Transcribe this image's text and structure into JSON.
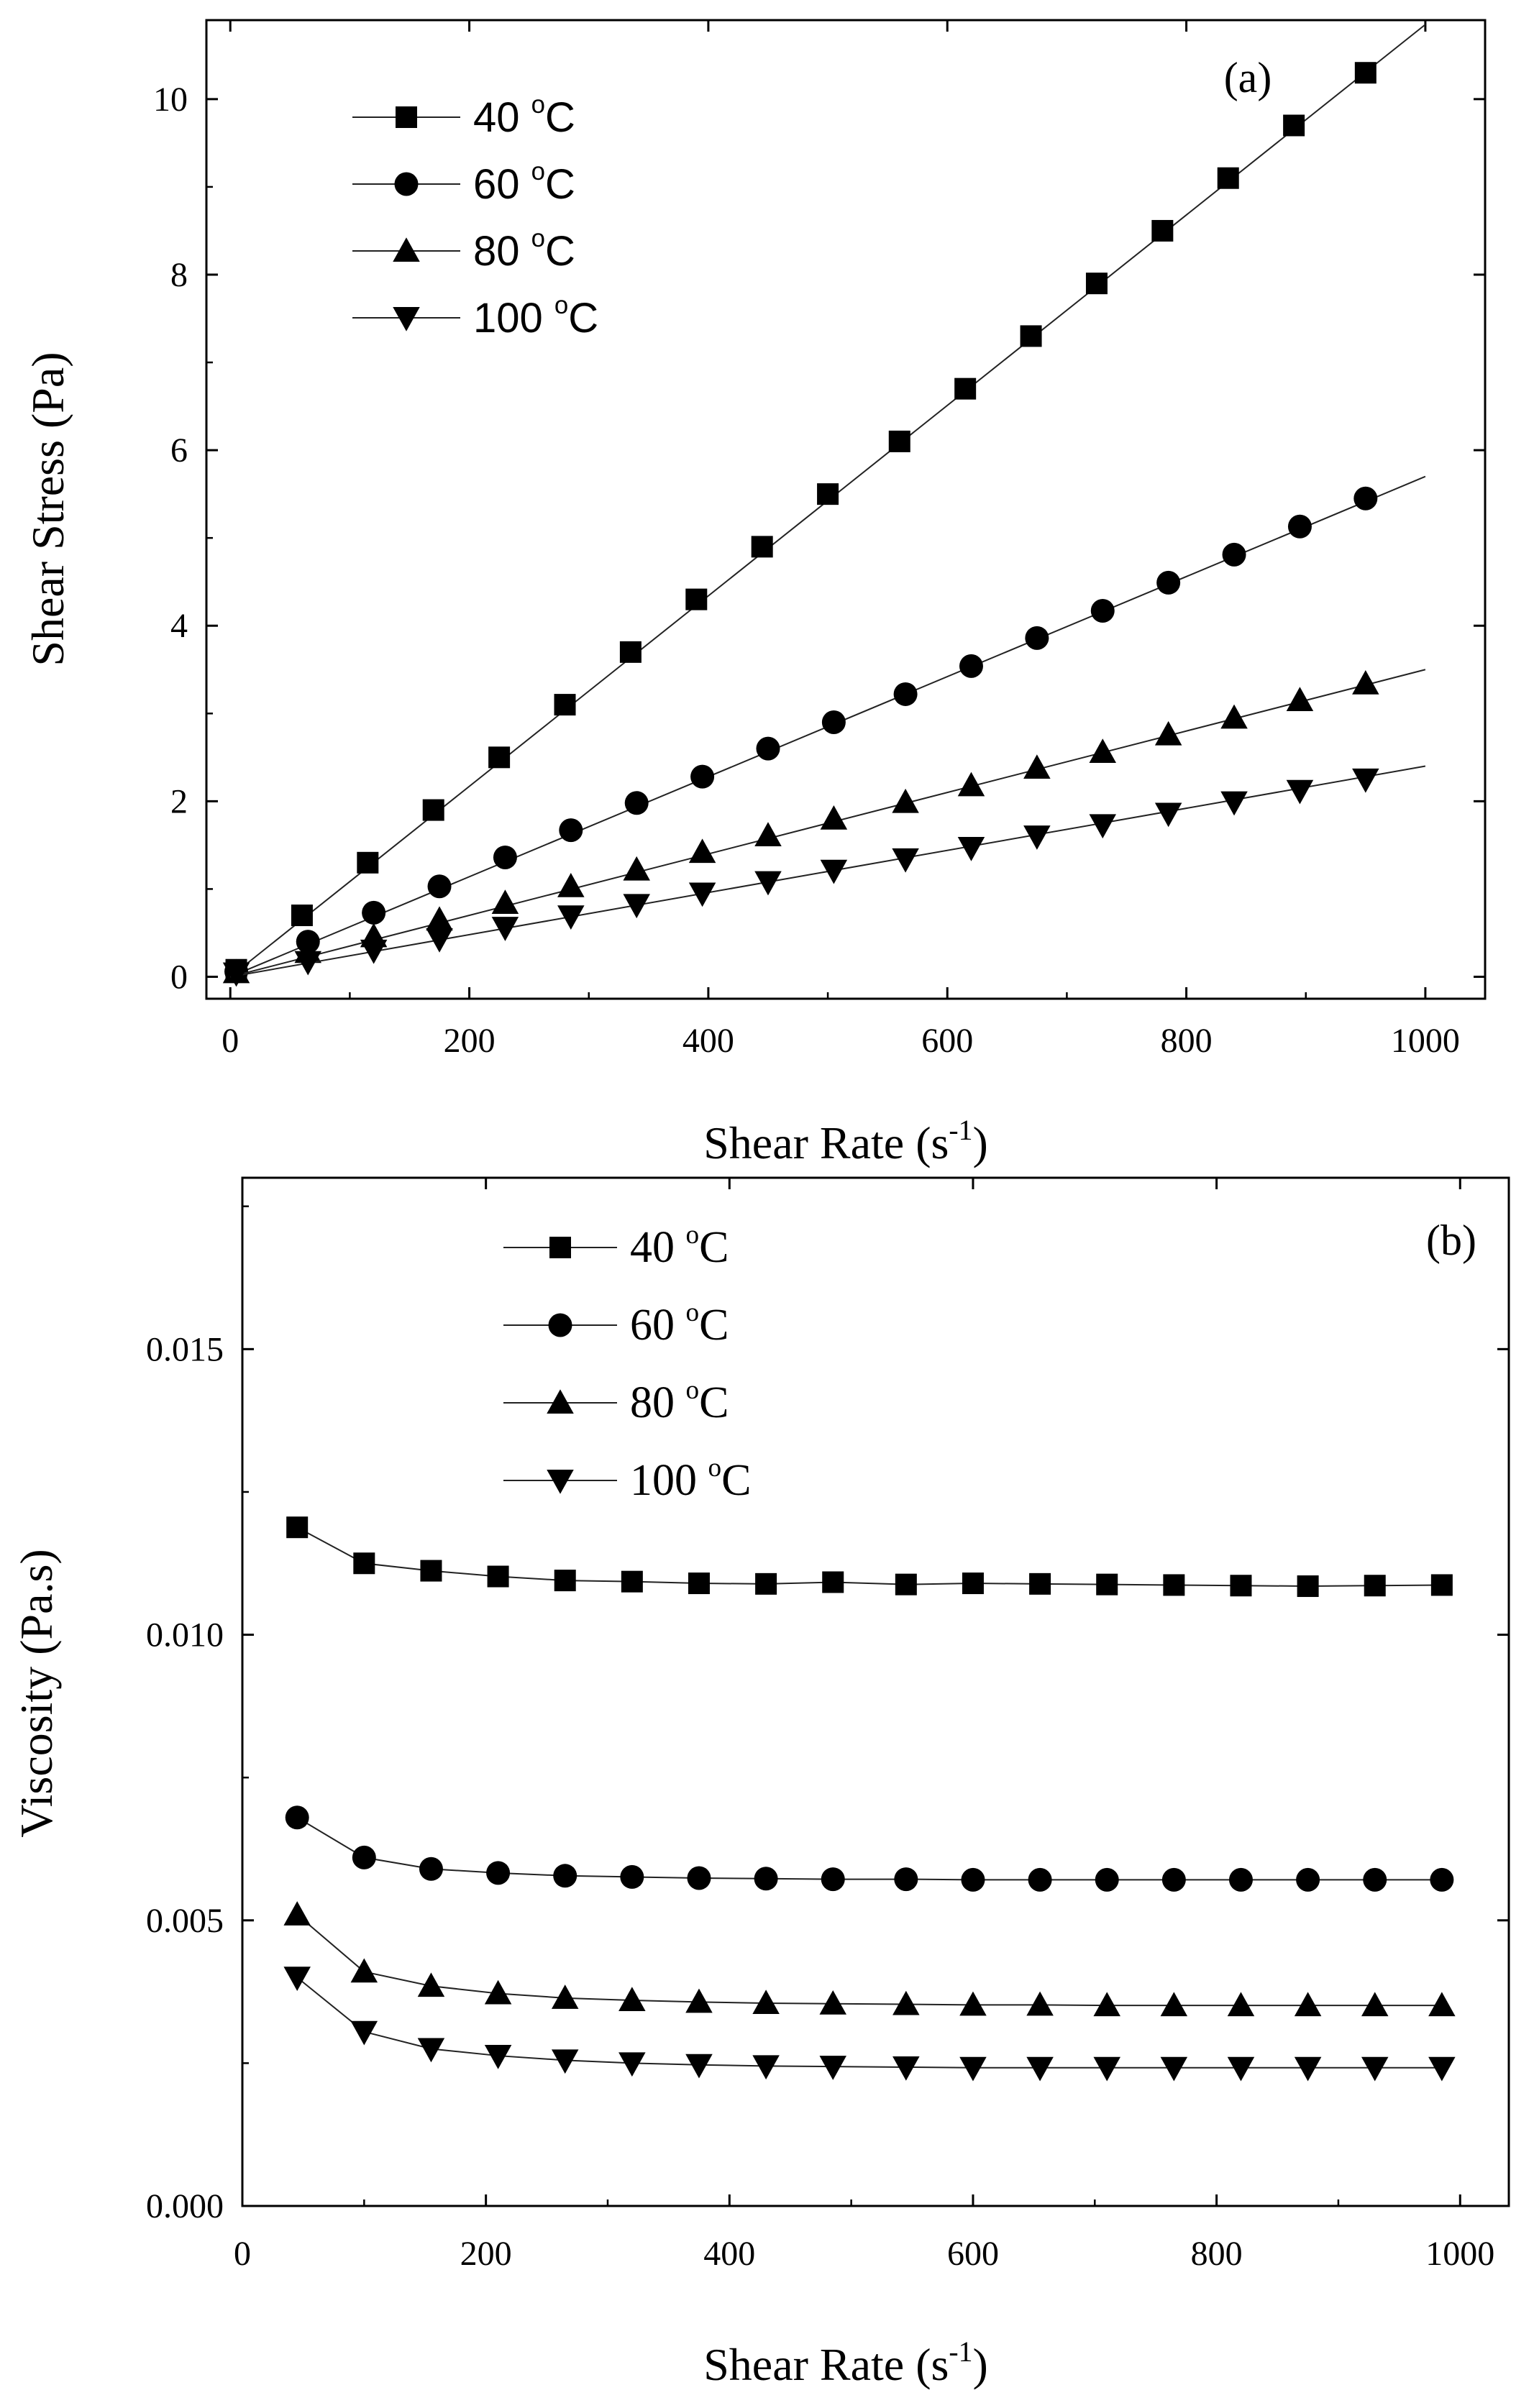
{
  "chart_data": [
    {
      "type": "line",
      "panel": "a",
      "panel_label": "(a)",
      "title": "",
      "xlabel_main": "Shear Rate (s",
      "xlabel_sup": "-1",
      "xlabel_close": ")",
      "ylabel": "Shear Stress (Pa)",
      "xlim": [
        -20,
        1050
      ],
      "ylim": [
        -0.25,
        10.9
      ],
      "xticks": [
        0,
        200,
        400,
        600,
        800,
        1000
      ],
      "xtick_labels": [
        "0",
        "200",
        "400",
        "600",
        "800",
        "1000"
      ],
      "yticks": [
        0,
        2,
        4,
        6,
        8,
        10
      ],
      "ytick_labels": [
        "0",
        "2",
        "4",
        "6",
        "8",
        "10"
      ],
      "legend_position": "top-left",
      "series": [
        {
          "name": "40 °C",
          "label_main": "40 ",
          "label_sup": "o",
          "label_unit": "C",
          "marker": "square",
          "x": [
            5,
            60,
            115,
            170,
            225,
            280,
            335,
            390,
            445,
            500,
            560,
            615,
            670,
            725,
            780,
            835,
            890,
            950
          ],
          "y": [
            0.08,
            0.7,
            1.3,
            1.9,
            2.5,
            3.1,
            3.7,
            4.3,
            4.9,
            5.5,
            6.1,
            6.7,
            7.3,
            7.9,
            8.5,
            9.1,
            9.7,
            10.3
          ],
          "line_x": [
            0,
            1000
          ],
          "line_y": [
            0.0,
            10.85
          ]
        },
        {
          "name": "60 °C",
          "label_main": "60 ",
          "label_sup": "o",
          "label_unit": "C",
          "marker": "circle",
          "x": [
            5,
            65,
            120,
            175,
            230,
            285,
            340,
            395,
            450,
            505,
            565,
            620,
            675,
            730,
            785,
            840,
            895,
            950
          ],
          "y": [
            0.06,
            0.4,
            0.73,
            1.03,
            1.36,
            1.67,
            1.98,
            2.28,
            2.6,
            2.9,
            3.22,
            3.54,
            3.86,
            4.17,
            4.49,
            4.81,
            5.13,
            5.45
          ],
          "line_x": [
            0,
            1000
          ],
          "line_y": [
            0.0,
            5.7
          ]
        },
        {
          "name": "80 °C",
          "label_main": "80 ",
          "label_sup": "o",
          "label_unit": "C",
          "marker": "triangle-up",
          "x": [
            5,
            65,
            120,
            175,
            230,
            285,
            340,
            395,
            450,
            505,
            565,
            620,
            675,
            730,
            785,
            840,
            895,
            950
          ],
          "y": [
            0.05,
            0.28,
            0.46,
            0.65,
            0.84,
            1.03,
            1.22,
            1.42,
            1.61,
            1.8,
            1.99,
            2.18,
            2.38,
            2.56,
            2.76,
            2.95,
            3.15,
            3.34
          ],
          "line_x": [
            0,
            1000
          ],
          "line_y": [
            0.0,
            3.5
          ]
        },
        {
          "name": "100 °C",
          "label_main": "100 ",
          "label_sup": "o",
          "label_unit": "C",
          "marker": "triangle-down",
          "x": [
            5,
            65,
            120,
            175,
            230,
            285,
            340,
            395,
            450,
            505,
            565,
            620,
            675,
            730,
            785,
            840,
            895,
            950
          ],
          "y": [
            0.04,
            0.17,
            0.3,
            0.43,
            0.56,
            0.69,
            0.82,
            0.95,
            1.08,
            1.21,
            1.34,
            1.47,
            1.6,
            1.73,
            1.86,
            1.99,
            2.12,
            2.25
          ],
          "line_x": [
            0,
            1000
          ],
          "line_y": [
            0.0,
            2.4
          ]
        }
      ]
    },
    {
      "type": "line",
      "panel": "b",
      "panel_label": "(b)",
      "title": "",
      "xlabel_main": "Shear Rate (s",
      "xlabel_sup": "-1",
      "xlabel_close": ")",
      "ylabel": "Viscosity (Pa.s)",
      "xlim": [
        0,
        1040
      ],
      "ylim": [
        0.0,
        0.018
      ],
      "xticks": [
        0,
        200,
        400,
        600,
        800,
        1000
      ],
      "xtick_labels": [
        "0",
        "200",
        "400",
        "600",
        "800",
        "1000"
      ],
      "yticks": [
        0.0,
        0.005,
        0.01,
        0.015
      ],
      "ytick_labels": [
        "0.000",
        "0.005",
        "0.010",
        "0.015"
      ],
      "legend_position": "top-left",
      "series": [
        {
          "name": "40 °C",
          "label_main": "40 ",
          "label_sup": "o",
          "label_unit": "C",
          "marker": "square",
          "x": [
            45,
            100,
            155,
            210,
            265,
            320,
            375,
            430,
            485,
            545,
            600,
            655,
            710,
            765,
            820,
            875,
            930,
            985
          ],
          "y": [
            0.01188,
            0.01125,
            0.01112,
            0.01102,
            0.01095,
            0.01093,
            0.0109,
            0.01089,
            0.01092,
            0.01088,
            0.0109,
            0.01089,
            0.01088,
            0.01087,
            0.01086,
            0.01085,
            0.01086,
            0.01087
          ]
        },
        {
          "name": "60 °C",
          "label_main": "60 ",
          "label_sup": "o",
          "label_unit": "C",
          "marker": "circle",
          "x": [
            45,
            100,
            155,
            210,
            265,
            320,
            375,
            430,
            485,
            545,
            600,
            655,
            710,
            765,
            820,
            875,
            930,
            985
          ],
          "y": [
            0.0068,
            0.0061,
            0.0059,
            0.00583,
            0.00578,
            0.00576,
            0.00574,
            0.00573,
            0.00572,
            0.00572,
            0.00571,
            0.00571,
            0.00571,
            0.00571,
            0.00571,
            0.00571,
            0.00571,
            0.00571
          ]
        },
        {
          "name": "80 °C",
          "label_main": "80 ",
          "label_sup": "o",
          "label_unit": "C",
          "marker": "triangle-up",
          "x": [
            45,
            100,
            155,
            210,
            265,
            320,
            375,
            430,
            485,
            545,
            600,
            655,
            710,
            765,
            820,
            875,
            930,
            985
          ],
          "y": [
            0.0051,
            0.0041,
            0.00385,
            0.00372,
            0.00364,
            0.0036,
            0.00357,
            0.00355,
            0.00354,
            0.00353,
            0.00352,
            0.00352,
            0.00351,
            0.00351,
            0.00351,
            0.00351,
            0.00351,
            0.00351
          ]
        },
        {
          "name": "100 °C",
          "label_main": "100 ",
          "label_sup": "o",
          "label_unit": "C",
          "marker": "triangle-down",
          "x": [
            45,
            100,
            155,
            210,
            265,
            320,
            375,
            430,
            485,
            545,
            600,
            655,
            710,
            765,
            820,
            875,
            930,
            985
          ],
          "y": [
            0.004,
            0.00305,
            0.00275,
            0.00263,
            0.00255,
            0.0025,
            0.00247,
            0.00245,
            0.00244,
            0.00243,
            0.00242,
            0.00242,
            0.00242,
            0.00242,
            0.00242,
            0.00242,
            0.00242,
            0.00242
          ]
        }
      ]
    }
  ]
}
